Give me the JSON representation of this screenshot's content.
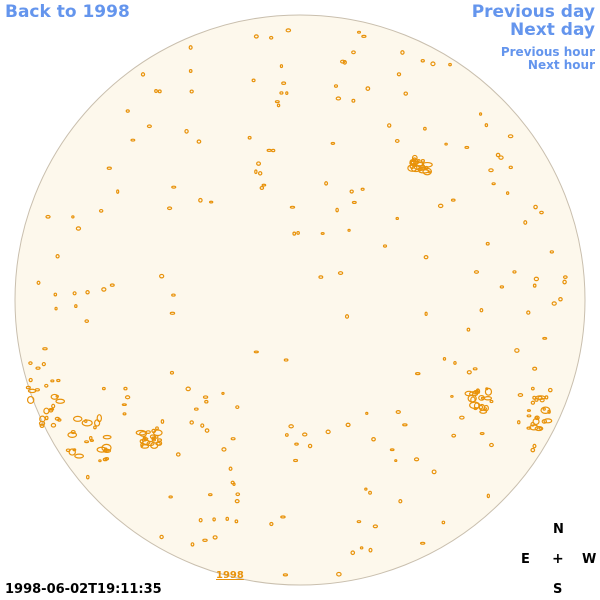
{
  "nav": {
    "back": "Back to 1998",
    "previous_day": "Previous day",
    "next_day": "Next day",
    "previous_hour": "Previous hour",
    "next_hour": "Next hour"
  },
  "compass": {
    "north": "N",
    "east": "E",
    "center": "+",
    "west": "W",
    "south": "S"
  },
  "timestamp": "1998-06-02T19:11:35",
  "year_tag": "1998",
  "colors": {
    "link": "#6495ed",
    "disk_fill": "#fdf8ec",
    "disk_border": "#c9bfae",
    "contour": "#e8920a"
  }
}
